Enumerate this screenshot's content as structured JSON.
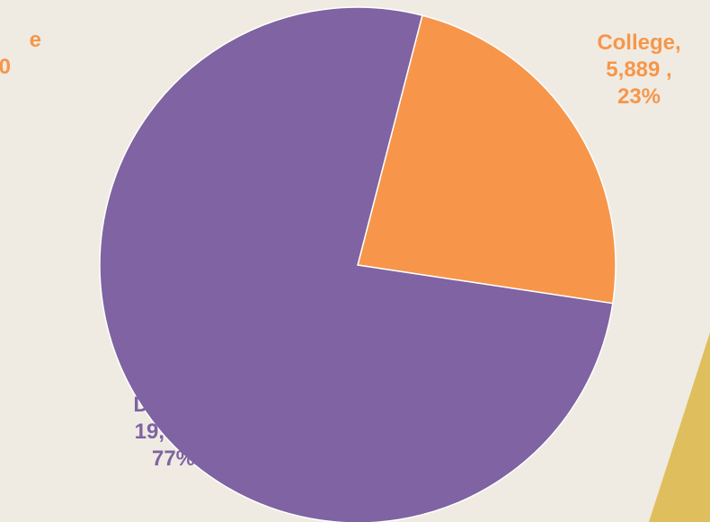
{
  "chart_data": {
    "type": "pie",
    "title": "",
    "slices": [
      {
        "label": "College",
        "value": 5889,
        "value_text": "5,889",
        "percent_text": "23%",
        "color": "#f7964a"
      },
      {
        "label": "District",
        "value": 19333,
        "value_text": "19,333",
        "percent_text": "77%",
        "color": "#7f63a2"
      }
    ],
    "partial_label": {
      "line1": "e",
      "line2": "0",
      "color": "#f7964a"
    }
  },
  "colors": {
    "background": "#efebe2",
    "accent_shape": "#dfbf5d"
  }
}
